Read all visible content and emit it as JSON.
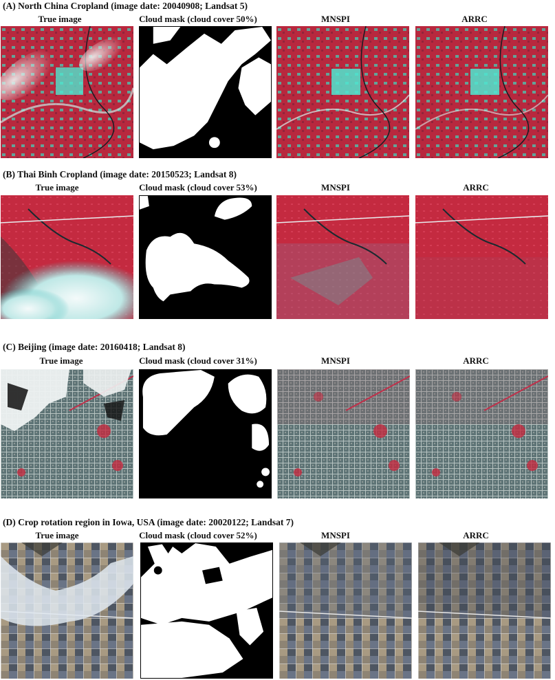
{
  "figure": {
    "rows": [
      {
        "title": "(A) North China Cropland (image date: 20040908; Landsat 5)",
        "labels": [
          "True image",
          "Cloud mask (cloud cover 50%)",
          "MNSPI",
          "ARRC"
        ]
      },
      {
        "title": "(B) Thai Binh Cropland (image date: 20150523; Landsat 8)",
        "labels": [
          "True image",
          "Cloud mask (cloud cover 53%)",
          "MNSPI",
          "ARRC"
        ]
      },
      {
        "title": "(C) Beijing (image date: 20160418; Landsat 8)",
        "labels": [
          "True image",
          "Cloud mask (cloud cover 31%)",
          "MNSPI",
          "ARRC"
        ]
      },
      {
        "title": "(D) Crop rotation region in Iowa, USA (image date: 20020122; Landsat 7)",
        "labels": [
          "True image",
          "Cloud mask (cloud cover 52%)",
          "MNSPI",
          "ARRC"
        ]
      }
    ],
    "colors": {
      "vegetation_red": "#c8283c",
      "urban_cyan": "#3ee6c8",
      "water_dark": "#1a2a30",
      "cloud_white": "#f2f6f6",
      "mask_black": "#000000",
      "iowa_tan": "#a89a82",
      "iowa_blue_gray": "#6a7486"
    }
  }
}
